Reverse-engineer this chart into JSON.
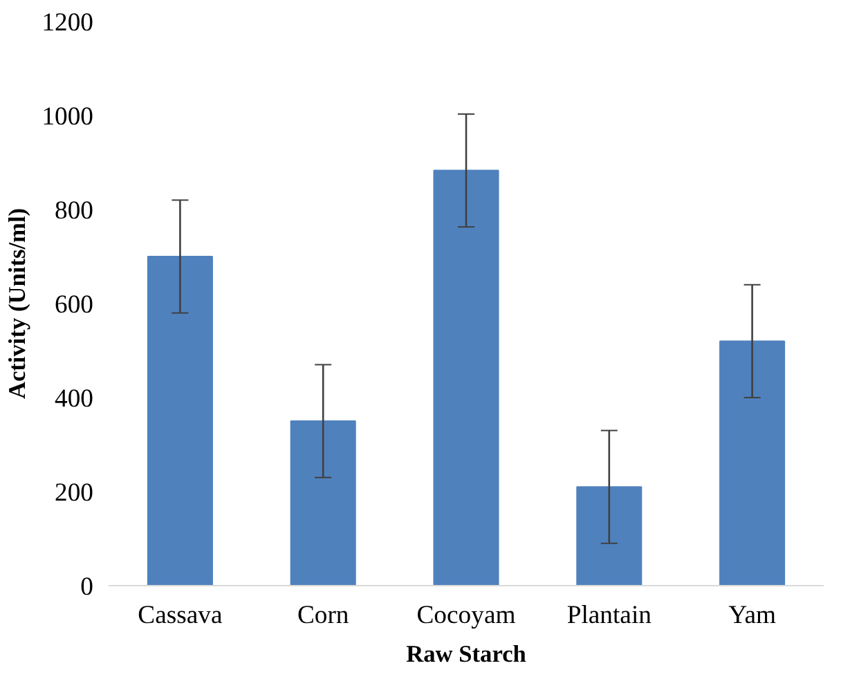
{
  "chart_data": {
    "type": "bar",
    "xlabel": "Raw Starch",
    "ylabel": "Activity (Units/ml)",
    "categories": [
      "Cassava",
      "Corn",
      "Cocoyam",
      "Plantain",
      "Yam"
    ],
    "values": [
      700,
      350,
      883,
      210,
      520
    ],
    "errors": [
      120,
      120,
      120,
      120,
      120
    ],
    "color": "#4f81bd",
    "ylim": [
      0,
      1200
    ],
    "yticks": [
      0,
      200,
      400,
      600,
      800,
      1000,
      1200
    ],
    "grid": false
  }
}
